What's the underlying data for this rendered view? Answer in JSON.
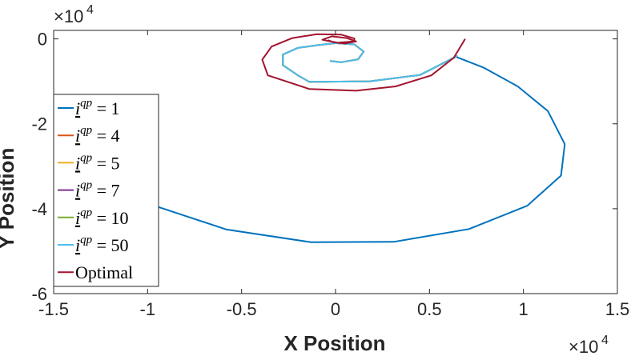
{
  "chart_data": {
    "type": "line",
    "xlabel": "X Position",
    "ylabel": "Y Position",
    "x_exponent": "×10",
    "x_exponent_power": "4",
    "y_exponent": "×10",
    "y_exponent_power": "4",
    "xlim": [
      -15000,
      15000
    ],
    "ylim": [
      -60000,
      2000
    ],
    "xticks": [
      -15000,
      -10000,
      -5000,
      0,
      5000,
      10000,
      15000
    ],
    "xtick_labels": [
      "-1.5",
      "-1",
      "-0.5",
      "0",
      "0.5",
      "1",
      "1.5"
    ],
    "yticks": [
      -60000,
      -40000,
      -20000,
      0
    ],
    "ytick_labels": [
      "-6",
      "-4",
      "-2",
      "0"
    ],
    "grid": false,
    "legend_position": "left",
    "series": [
      {
        "legend_var": "i",
        "legend_sup": "qp",
        "legend_rest": " = 1",
        "color": "#0072BD",
        "x": [
          6400,
          7900,
          9700,
          11300,
          12200,
          12000,
          10200,
          7100,
          3100,
          -1300,
          -5800,
          -9500,
          -13000
        ],
        "y": [
          -4200,
          -6800,
          -11200,
          -17000,
          -24800,
          -32200,
          -39300,
          -44800,
          -47800,
          -47900,
          -44900,
          -39500,
          -33500
        ]
      },
      {
        "legend_var": "i",
        "legend_sup": "qp",
        "legend_rest": " = 4",
        "color": "#D95319",
        "x": [
          6500,
          4500,
          1800,
          -1400,
          -2000,
          -2800,
          -2800,
          -2000,
          -1000,
          0,
          1000,
          1500,
          1200,
          300,
          -300
        ],
        "y": [
          -4000,
          -8500,
          -10000,
          -10100,
          -8600,
          -6200,
          -3700,
          -2100,
          -1500,
          -1000,
          -1300,
          -3000,
          -4800,
          -5500,
          -5200
        ]
      },
      {
        "legend_var": "i",
        "legend_sup": "qp",
        "legend_rest": " = 5",
        "color": "#EDB120",
        "x": [
          6500,
          4500,
          1800,
          -1400,
          -2000,
          -2800,
          -2800,
          -2000,
          -1000,
          0,
          1000,
          1500,
          1200,
          300,
          -300
        ],
        "y": [
          -4000,
          -8500,
          -10000,
          -10100,
          -8600,
          -6200,
          -3700,
          -2100,
          -1500,
          -1000,
          -1300,
          -3000,
          -4800,
          -5500,
          -5200
        ]
      },
      {
        "legend_var": "i",
        "legend_sup": "qp",
        "legend_rest": " = 7",
        "color": "#7E2F8E",
        "x": [
          6500,
          4500,
          1800,
          -1400,
          -2000,
          -2800,
          -2800,
          -2000,
          -1000,
          0,
          1000,
          1500,
          1200,
          300,
          -300
        ],
        "y": [
          -4000,
          -8500,
          -10000,
          -10100,
          -8600,
          -6200,
          -3700,
          -2100,
          -1500,
          -1000,
          -1300,
          -3000,
          -4800,
          -5500,
          -5200
        ]
      },
      {
        "legend_var": "i",
        "legend_sup": "qp",
        "legend_rest": " = 10",
        "color": "#77AC30",
        "x": [
          6500,
          4500,
          1800,
          -1400,
          -2000,
          -2800,
          -2800,
          -2000,
          -1000,
          0,
          1000,
          1500,
          1200,
          300,
          -300
        ],
        "y": [
          -4000,
          -8500,
          -10000,
          -10100,
          -8600,
          -6200,
          -3700,
          -2100,
          -1500,
          -1000,
          -1300,
          -3000,
          -4800,
          -5500,
          -5200
        ]
      },
      {
        "legend_var": "i",
        "legend_sup": "qp",
        "legend_rest": " = 50",
        "color": "#4DBEEE",
        "x": [
          6500,
          4500,
          1800,
          -1400,
          -2000,
          -2800,
          -2800,
          -2000,
          -1000,
          0,
          1000,
          1500,
          1200,
          300,
          -300
        ],
        "y": [
          -4000,
          -8500,
          -10000,
          -10100,
          -8600,
          -6200,
          -3700,
          -2100,
          -1500,
          -1000,
          -1300,
          -3000,
          -4800,
          -5500,
          -5200
        ]
      },
      {
        "legend_var": "",
        "legend_sup": "",
        "legend_rest": "Optimal",
        "color": "#A2142F",
        "x": [
          6900,
          6300,
          5100,
          3200,
          1100,
          -1400,
          -3600,
          -3900,
          -3400,
          -2300,
          -1000,
          300,
          1000,
          1000,
          100,
          -700,
          -200,
          600,
          1100,
          500,
          -100,
          -400
        ],
        "y": [
          0,
          -4400,
          -8600,
          -11200,
          -12200,
          -11800,
          -8600,
          -4900,
          -1800,
          200,
          1100,
          1000,
          100,
          -600,
          -900,
          -200,
          600,
          200,
          -600,
          -1100,
          -800,
          -300
        ]
      }
    ]
  }
}
